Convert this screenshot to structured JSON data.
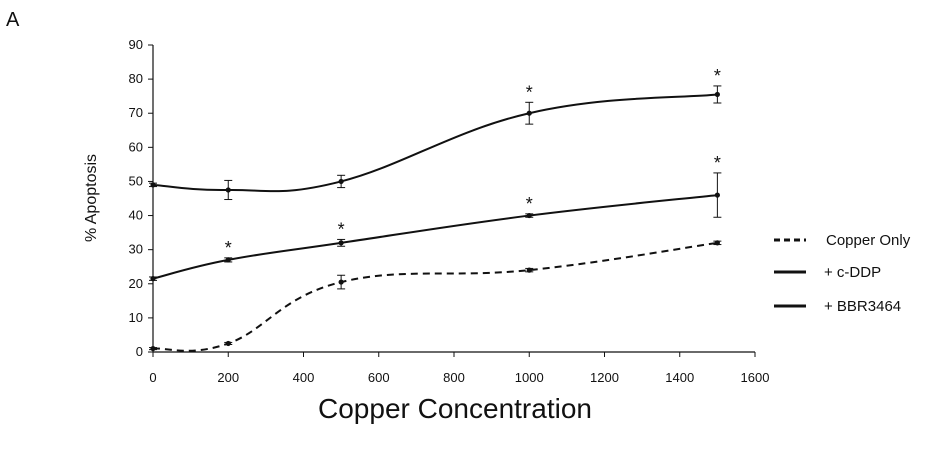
{
  "panel_label": "A",
  "chart_data": {
    "type": "line",
    "title": "",
    "xlabel": "Copper Concentration",
    "ylabel": "% Apoptosis",
    "xlim": [
      0,
      1600
    ],
    "ylim": [
      0,
      90
    ],
    "xticks": [
      0,
      200,
      400,
      600,
      800,
      1000,
      1200,
      1400,
      1600
    ],
    "yticks": [
      0,
      10,
      20,
      30,
      40,
      50,
      60,
      70,
      80,
      90
    ],
    "grid": false,
    "legend_position": "right",
    "series": [
      {
        "name": "+ c-DDP",
        "style": "solid",
        "color": "#111111",
        "x": [
          0,
          200,
          500,
          1000,
          1500
        ],
        "y": [
          49,
          47.5,
          50,
          70,
          75.5
        ],
        "err": [
          0.5,
          2.8,
          1.8,
          3.2,
          2.5
        ],
        "significant": [
          false,
          false,
          false,
          true,
          true
        ]
      },
      {
        "name": "+ BBR3464",
        "style": "solid",
        "color": "#111111",
        "x": [
          0,
          200,
          500,
          1000,
          1500
        ],
        "y": [
          21.5,
          27,
          32,
          40,
          46
        ],
        "err": [
          0.5,
          0.6,
          1.0,
          0.5,
          6.5
        ],
        "significant": [
          false,
          true,
          true,
          true,
          true
        ]
      },
      {
        "name": "Copper Only",
        "style": "dashed",
        "color": "#111111",
        "x": [
          0,
          200,
          500,
          1000,
          1500
        ],
        "y": [
          1,
          2.5,
          20.5,
          24,
          32
        ],
        "err": [
          0.3,
          0.3,
          2.0,
          0.5,
          0.5
        ],
        "significant": [
          false,
          false,
          false,
          false,
          false
        ]
      }
    ],
    "significance_marker": "*"
  },
  "legend": [
    {
      "label": "Copper Only",
      "style": "dashed"
    },
    {
      "label": "+ c-DDP",
      "style": "solid"
    },
    {
      "label": "+ BBR3464",
      "style": "solid"
    }
  ]
}
